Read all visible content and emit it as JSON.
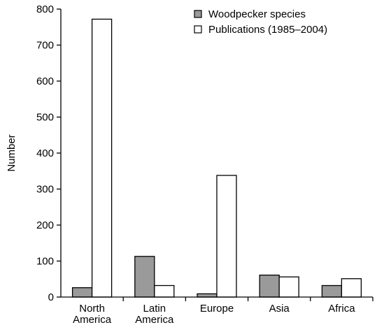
{
  "chart_data": {
    "type": "bar",
    "categories": [
      [
        "North",
        "America"
      ],
      [
        "Latin",
        "America"
      ],
      [
        "Europe"
      ],
      [
        "Asia"
      ],
      [
        "Africa"
      ]
    ],
    "series": [
      {
        "name": "Woodpecker species",
        "values": [
          26,
          113,
          9,
          61,
          32
        ],
        "color": "#9a9a9a"
      },
      {
        "name": "Publications (1985–2004)",
        "values": [
          772,
          32,
          338,
          56,
          51
        ],
        "color": "#ffffff"
      }
    ],
    "xlabel": "",
    "ylabel": "Number",
    "ylim": [
      0,
      800
    ],
    "yticks": [
      0,
      100,
      200,
      300,
      400,
      500,
      600,
      700,
      800
    ],
    "legend_position": "top-right",
    "grid": false
  }
}
